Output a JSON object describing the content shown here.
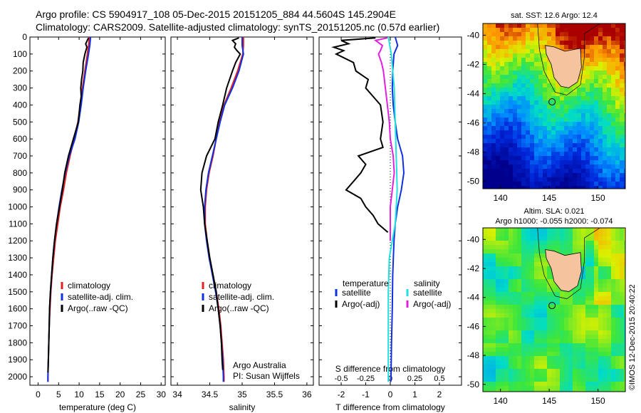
{
  "header": {
    "line1": "Argo profile: CS 5904917_108 05-Dec-2015 20151205_884 44.5604S 145.2904E",
    "line2": "Climatology: CARS2009. Satellite-adjusted climatology: synTS_20151205.nc (0.57d earlier)"
  },
  "colors": {
    "climatology": "#e02020",
    "satellite": "#1030e0",
    "argo": "#000000",
    "sal_satellite": "#20e0e0",
    "sal_argo": "#e020e0"
  },
  "chart_data": [
    {
      "type": "line",
      "xlabel": "temperature (deg C)",
      "ylabel": "",
      "xlim": [
        -2,
        31
      ],
      "ylim": [
        0,
        2050
      ],
      "y_inverted": true,
      "xticks": [
        0,
        5,
        10,
        15,
        20,
        25,
        30
      ],
      "yticks": [
        0,
        100,
        200,
        300,
        400,
        500,
        600,
        700,
        800,
        900,
        1000,
        1100,
        1200,
        1300,
        1400,
        1500,
        1600,
        1700,
        1800,
        1900,
        2000
      ],
      "legend": [
        "climatology",
        "satellite-adj. clim.",
        "Argo(..raw -QC)"
      ],
      "legend_position": "center-right",
      "series": [
        {
          "name": "climatology",
          "color": "#e02020",
          "depth": [
            0,
            50,
            100,
            200,
            300,
            400,
            500,
            600,
            700,
            800,
            900,
            1000,
            1100,
            1200,
            1300,
            1400,
            1500,
            1600,
            1700,
            1800,
            1900,
            2000,
            2030
          ],
          "values": [
            12.5,
            12.3,
            12.0,
            11.4,
            10.8,
            10.3,
            9.7,
            8.8,
            7.8,
            6.9,
            6.2,
            5.4,
            4.8,
            4.2,
            3.8,
            3.4,
            3.1,
            2.9,
            2.7,
            2.6,
            2.5,
            2.4,
            2.4
          ]
        },
        {
          "name": "satellite-adj. clim.",
          "color": "#1030e0",
          "depth": [
            0,
            50,
            100,
            200,
            300,
            400,
            500,
            600,
            700,
            800,
            900,
            1000,
            1100,
            1200,
            1300,
            1400,
            1500,
            1600,
            1700,
            1800,
            1900,
            2000,
            2030
          ],
          "values": [
            12.8,
            12.6,
            12.3,
            11.6,
            11.0,
            10.5,
            9.9,
            9.0,
            7.6,
            6.6,
            5.8,
            5.1,
            4.5,
            4.0,
            3.6,
            3.3,
            3.0,
            2.8,
            2.7,
            2.6,
            2.5,
            2.4,
            2.4
          ]
        },
        {
          "name": "Argo(..raw -QC)",
          "color": "#000000",
          "depth": [
            5,
            40,
            60,
            100,
            150,
            200,
            250,
            300,
            350,
            400,
            450,
            500,
            550,
            600,
            650,
            700,
            800,
            900,
            1000,
            1100,
            1200,
            1300,
            1400,
            1500,
            1600,
            1700,
            1800,
            1900,
            1975
          ],
          "values": [
            12.3,
            11.6,
            11.9,
            11.4,
            11.0,
            10.9,
            10.6,
            10.4,
            10.5,
            10.2,
            10.0,
            9.8,
            9.2,
            8.6,
            8.0,
            7.4,
            6.5,
            5.9,
            5.2,
            4.5,
            4.0,
            3.6,
            3.3,
            3.0,
            2.8,
            2.7,
            2.6,
            2.5,
            2.4
          ]
        }
      ]
    },
    {
      "type": "line",
      "xlabel": "salinity",
      "ylabel": "",
      "xlim": [
        33.9,
        36.1
      ],
      "ylim": [
        0,
        2050
      ],
      "y_inverted": true,
      "xticks": [
        34,
        34.5,
        35,
        35.5,
        36
      ],
      "legend": [
        "climatology",
        "satellite-adj. clim.",
        "Argo(..raw -QC)"
      ],
      "legend_position": "center-right",
      "annotation": [
        "Argo Australia",
        "PI: Susan Wijffels"
      ],
      "series": [
        {
          "name": "climatology",
          "color": "#e02020",
          "depth": [
            0,
            50,
            100,
            200,
            300,
            400,
            500,
            600,
            700,
            800,
            900,
            1000,
            1100,
            1200,
            1300,
            1400,
            1500,
            1600,
            1700,
            1800,
            1900,
            2000,
            2030
          ],
          "values": [
            35.02,
            35.02,
            35.01,
            34.93,
            34.83,
            34.72,
            34.65,
            34.6,
            34.55,
            34.49,
            34.45,
            34.43,
            34.43,
            34.46,
            34.5,
            34.55,
            34.6,
            34.64,
            34.67,
            34.69,
            34.71,
            34.72,
            34.72
          ]
        },
        {
          "name": "satellite-adj. clim.",
          "color": "#1030e0",
          "depth": [
            0,
            50,
            100,
            200,
            300,
            400,
            500,
            600,
            700,
            800,
            900,
            1000,
            1100,
            1200,
            1300,
            1400,
            1500,
            1600,
            1700,
            1800,
            1900,
            2000,
            2030
          ],
          "values": [
            35.0,
            35.0,
            35.02,
            34.95,
            34.85,
            34.73,
            34.66,
            34.6,
            34.54,
            34.48,
            34.44,
            34.42,
            34.42,
            34.45,
            34.49,
            34.54,
            34.59,
            34.63,
            34.66,
            34.68,
            34.7,
            34.71,
            34.71
          ]
        },
        {
          "name": "Argo(..raw -QC)",
          "color": "#000000",
          "depth": [
            5,
            20,
            40,
            60,
            80,
            100,
            150,
            200,
            300,
            400,
            500,
            600,
            700,
            800,
            900,
            1000,
            1100,
            1200,
            1300,
            1400,
            1500,
            1600,
            1700,
            1800,
            1900,
            1960
          ],
          "values": [
            34.95,
            34.85,
            34.9,
            34.88,
            34.92,
            34.97,
            34.9,
            34.85,
            34.76,
            34.7,
            34.63,
            34.58,
            34.45,
            34.38,
            34.36,
            34.4,
            34.42,
            34.46,
            34.5,
            34.55,
            34.6,
            34.63,
            34.66,
            34.68,
            34.69,
            34.7
          ]
        }
      ]
    },
    {
      "type": "line",
      "xlabel": "T difference from climatology",
      "top_xlabel": "S difference from climatology",
      "xlim": [
        -2.9,
        2.9
      ],
      "ylim": [
        0,
        2050
      ],
      "y_inverted": true,
      "xticks": [
        -2,
        -1,
        0,
        1,
        2
      ],
      "top_xticks": [
        "-0.5",
        "-0.25",
        "0",
        "0.25",
        "0.5"
      ],
      "top_xticks_values": [
        -0.5,
        -0.25,
        0,
        0.25,
        0.5
      ],
      "legend_left_title": "temperature",
      "legend_right_title": "salinity",
      "legend_left": [
        "satellite",
        "Argo(-adj)"
      ],
      "legend_right": [
        "satellite",
        "Argo(-adj)"
      ],
      "series": [
        {
          "name": "satellite",
          "color": "#1030e0",
          "depth": [
            0,
            50,
            100,
            200,
            300,
            400,
            500,
            600,
            700,
            800,
            900,
            1000,
            1100,
            1200,
            1400,
            1600,
            1800,
            2000,
            2030
          ],
          "values": [
            0.2,
            0.3,
            0.15,
            0.1,
            0.08,
            0.12,
            0.2,
            0.3,
            0.5,
            0.55,
            0.45,
            0.3,
            0.2,
            0.15,
            0.1,
            0.08,
            0.05,
            0.03,
            0.02
          ]
        },
        {
          "name": "Argo(-adj)",
          "color": "#000000",
          "depth": [
            5,
            20,
            40,
            60,
            80,
            100,
            150,
            200,
            250,
            300,
            400,
            500,
            600,
            650,
            700,
            750,
            800,
            850,
            900,
            950,
            1000,
            1050,
            1100,
            1150
          ],
          "values": [
            -0.6,
            -2.0,
            -1.7,
            -2.3,
            -1.9,
            -2.2,
            -1.5,
            -1.4,
            -0.9,
            -1.0,
            -0.4,
            -0.3,
            -0.4,
            -0.3,
            -1.3,
            -1.0,
            -1.2,
            -1.5,
            -1.8,
            -1.2,
            -1.0,
            -0.7,
            -0.5,
            -0.1
          ]
        },
        {
          "name": "sal satellite",
          "color": "#20e0e0",
          "depth": [
            0,
            100,
            300,
            500,
            700,
            900,
            1100,
            1300,
            1500,
            1700,
            1900,
            2030
          ],
          "sal_values": [
            -0.02,
            0.01,
            0.04,
            0.05,
            0.06,
            0.07,
            0.05,
            -0.01,
            -0.02,
            -0.02,
            -0.02,
            -0.02
          ]
        },
        {
          "name": "sal Argo(-adj)",
          "color": "#e020e0",
          "depth": [
            5,
            20,
            50,
            80,
            100,
            150,
            200,
            300,
            400,
            500,
            600,
            700,
            800,
            900,
            1000,
            1100,
            1200
          ],
          "sal_values": [
            -0.03,
            -0.15,
            -0.08,
            -0.1,
            -0.12,
            -0.09,
            -0.07,
            -0.05,
            -0.03,
            -0.01,
            0.0,
            0.03,
            0.04,
            0.02,
            0.0,
            0.0,
            0.0
          ]
        }
      ]
    },
    {
      "type": "heatmap",
      "title": "sat. SST: 12.6  Argo: 12.4",
      "xticks": [
        140,
        145,
        150
      ],
      "yticks": [
        -40,
        -42,
        -44,
        -46,
        -48,
        -50
      ],
      "xlim": [
        138.2,
        152.8
      ],
      "ylim": [
        -50.5,
        -39.2
      ],
      "argo_position": {
        "lon": 145.29,
        "lat": -44.56
      }
    },
    {
      "type": "heatmap",
      "title": "Altim. SLA: 0.021",
      "subtitle": "Argo h1000: -0.055 h2000: -0.074",
      "xticks": [
        140,
        145,
        150
      ],
      "yticks": [
        -40,
        -42,
        -44,
        -46,
        -48,
        -50
      ],
      "xlim": [
        138.2,
        152.8
      ],
      "ylim": [
        -50.5,
        -39.2
      ],
      "argo_position": {
        "lon": 145.29,
        "lat": -44.56
      }
    }
  ],
  "credit": "©IMOS 12-Dec-2015 20:40:22"
}
